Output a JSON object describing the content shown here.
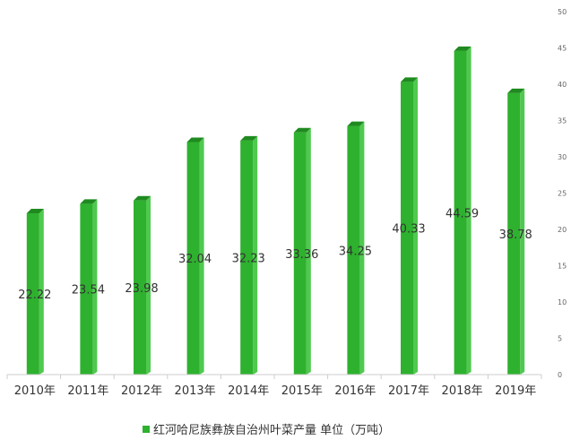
{
  "chart_data": {
    "type": "bar",
    "categories": [
      "2010年",
      "2011年",
      "2012年",
      "2013年",
      "2014年",
      "2015年",
      "2016年",
      "2017年",
      "2018年",
      "2019年"
    ],
    "series": [
      {
        "name": "红河哈尼族彝族自治州叶菜产量 单位（万吨）",
        "values": [
          22.22,
          23.54,
          23.98,
          32.04,
          32.23,
          33.36,
          34.25,
          40.33,
          44.59,
          38.78
        ]
      }
    ],
    "data_labels": [
      "22.22",
      "23.54",
      "23.98",
      "32.04",
      "32.23",
      "33.36",
      "34.25",
      "40.33",
      "44.59",
      "38.78"
    ],
    "y_ticks": [
      "0",
      "5",
      "10",
      "15",
      "20",
      "25",
      "30",
      "35",
      "40",
      "45",
      "50"
    ],
    "ylim": [
      0,
      50
    ],
    "y_axis_position": "right",
    "legend_position": "bottom",
    "colors": {
      "bar_front": "#2eb12e",
      "bar_side": "#4fc94f",
      "bar_top": "#1f8a1f",
      "axis": "#cccccc"
    }
  }
}
